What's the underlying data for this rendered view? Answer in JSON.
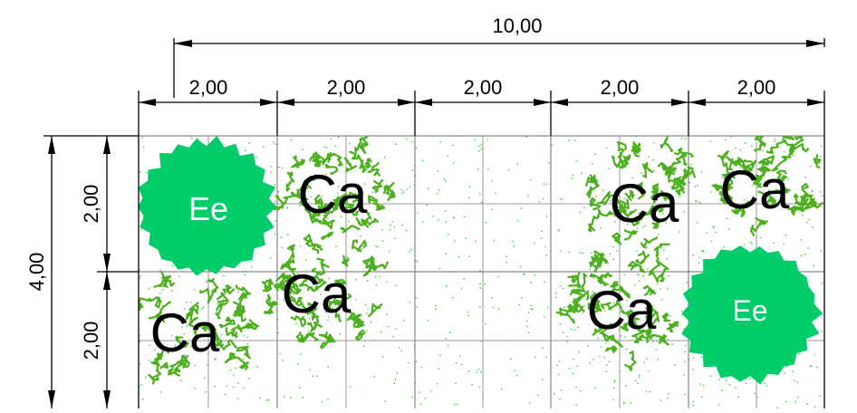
{
  "dimensions": {
    "total_width": "10,00",
    "columns": [
      "2,00",
      "2,00",
      "2,00",
      "2,00",
      "2,00"
    ],
    "total_height": "4,00",
    "rows": [
      "2,00",
      "2,00"
    ]
  },
  "plants": [
    {
      "code": "Ee",
      "kind": "shrub-solid"
    },
    {
      "code": "Ca",
      "kind": "foliage"
    },
    {
      "code": "Ca",
      "kind": "foliage"
    },
    {
      "code": "Ca",
      "kind": "foliage"
    },
    {
      "code": "Ca",
      "kind": "foliage"
    },
    {
      "code": "Ca",
      "kind": "foliage"
    },
    {
      "code": "Ca",
      "kind": "foliage"
    },
    {
      "code": "Ee",
      "kind": "shrub-solid"
    }
  ],
  "colors": {
    "dimension_line": "#000000",
    "grid": "#9a9a9a",
    "ground_dots": "#3cc43c",
    "foliage": "#4caf1e",
    "shrub": "#00cc6a",
    "shrub_label": "#ffffff",
    "foliage_label": "#000000"
  }
}
